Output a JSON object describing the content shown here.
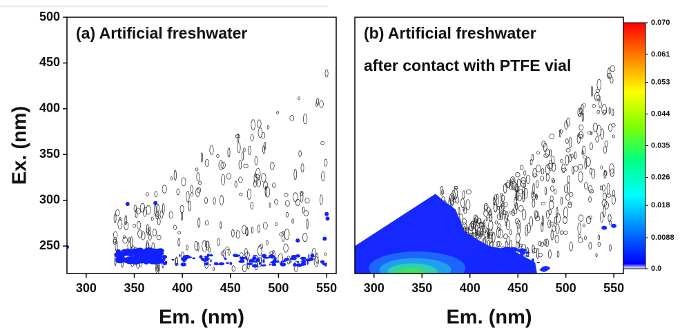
{
  "chart_data": [
    {
      "type": "contour",
      "title": [
        "(a) Artificial freshwater"
      ],
      "ylabel": "Ex. (nm)",
      "xlabel": "Em. (nm)",
      "xlim": [
        280,
        560
      ],
      "xticks": [
        300,
        350,
        400,
        450,
        500,
        550
      ],
      "ylim": [
        220,
        500
      ],
      "yticks": [
        250,
        300,
        350,
        400,
        450,
        500
      ]
    },
    {
      "type": "contour",
      "title": [
        "(b) Artificial freshwater",
        "after contact with PTFE vial"
      ],
      "xlabel": "Em. (nm)",
      "xlim": [
        280,
        560
      ],
      "xticks": [
        300,
        350,
        400,
        450,
        500,
        550
      ],
      "ylim": [
        220,
        500
      ],
      "colorbar": {
        "lim": [
          0,
          0.07
        ],
        "ticks": [
          {
            "value": 0.07,
            "label": "0.070"
          },
          0.061,
          0.053,
          0.044,
          0.035,
          0.026,
          0.018,
          0.0088,
          {
            "value": 0,
            "label": "0.0"
          }
        ],
        "colors": [
          "#ffffff",
          "#0000ff",
          "#0080ff",
          "#00ffff",
          "#00ff80",
          "#80ff00",
          "#ffff00",
          "#ff8000",
          "#ff0000"
        ]
      }
    }
  ]
}
